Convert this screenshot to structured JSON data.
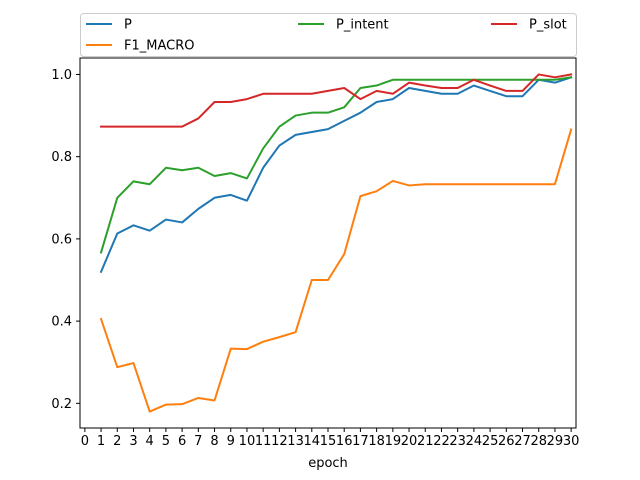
{
  "chart_data": {
    "type": "line",
    "title": "",
    "xlabel": "epoch",
    "ylabel": "",
    "xlim": [
      0,
      30
    ],
    "ylim": [
      0.14,
      1.04
    ],
    "x_ticks": [
      0,
      1,
      2,
      3,
      4,
      5,
      6,
      7,
      8,
      9,
      10,
      11,
      12,
      13,
      14,
      15,
      16,
      17,
      18,
      19,
      20,
      21,
      22,
      23,
      24,
      25,
      26,
      27,
      28,
      29,
      30
    ],
    "y_ticks": [
      0.2,
      0.4,
      0.6,
      0.8,
      1.0
    ],
    "y_tick_labels": [
      "0.2",
      "0.4",
      "0.6",
      "0.8",
      "1.0"
    ],
    "grid": false,
    "legend_position": "top",
    "x": [
      1,
      2,
      3,
      4,
      5,
      6,
      7,
      8,
      9,
      10,
      11,
      12,
      13,
      14,
      15,
      16,
      17,
      18,
      19,
      20,
      21,
      22,
      23,
      24,
      25,
      26,
      27,
      28,
      29,
      30
    ],
    "series": [
      {
        "name": "P",
        "color": "#1f77b4",
        "values": [
          0.52,
          0.613,
          0.633,
          0.62,
          0.647,
          0.64,
          0.673,
          0.7,
          0.707,
          0.693,
          0.773,
          0.827,
          0.853,
          0.86,
          0.867,
          0.887,
          0.907,
          0.933,
          0.94,
          0.967,
          0.96,
          0.953,
          0.953,
          0.973,
          0.96,
          0.947,
          0.947,
          0.987,
          0.98,
          0.993
        ]
      },
      {
        "name": "F1_MACRO",
        "color": "#ff7f0e",
        "values": [
          0.405,
          0.288,
          0.298,
          0.18,
          0.197,
          0.198,
          0.213,
          0.207,
          0.333,
          0.332,
          0.35,
          0.361,
          0.373,
          0.5,
          0.5,
          0.563,
          0.704,
          0.716,
          0.741,
          0.73,
          0.733,
          0.733,
          0.733,
          0.733,
          0.733,
          0.733,
          0.733,
          0.733,
          0.733,
          0.866
        ]
      },
      {
        "name": "P_intent",
        "color": "#2ca02c",
        "values": [
          0.567,
          0.7,
          0.74,
          0.733,
          0.773,
          0.767,
          0.773,
          0.753,
          0.76,
          0.747,
          0.82,
          0.873,
          0.9,
          0.907,
          0.907,
          0.92,
          0.967,
          0.973,
          0.987,
          0.987,
          0.987,
          0.987,
          0.987,
          0.987,
          0.987,
          0.987,
          0.987,
          0.987,
          0.987,
          0.993
        ]
      },
      {
        "name": "P_slot",
        "color": "#d62728",
        "values": [
          0.873,
          0.873,
          0.873,
          0.873,
          0.873,
          0.873,
          0.893,
          0.933,
          0.933,
          0.94,
          0.953,
          0.953,
          0.953,
          0.953,
          0.96,
          0.967,
          0.94,
          0.96,
          0.953,
          0.98,
          0.973,
          0.967,
          0.967,
          0.987,
          0.973,
          0.96,
          0.96,
          1.0,
          0.993,
          1.0
        ]
      }
    ]
  }
}
